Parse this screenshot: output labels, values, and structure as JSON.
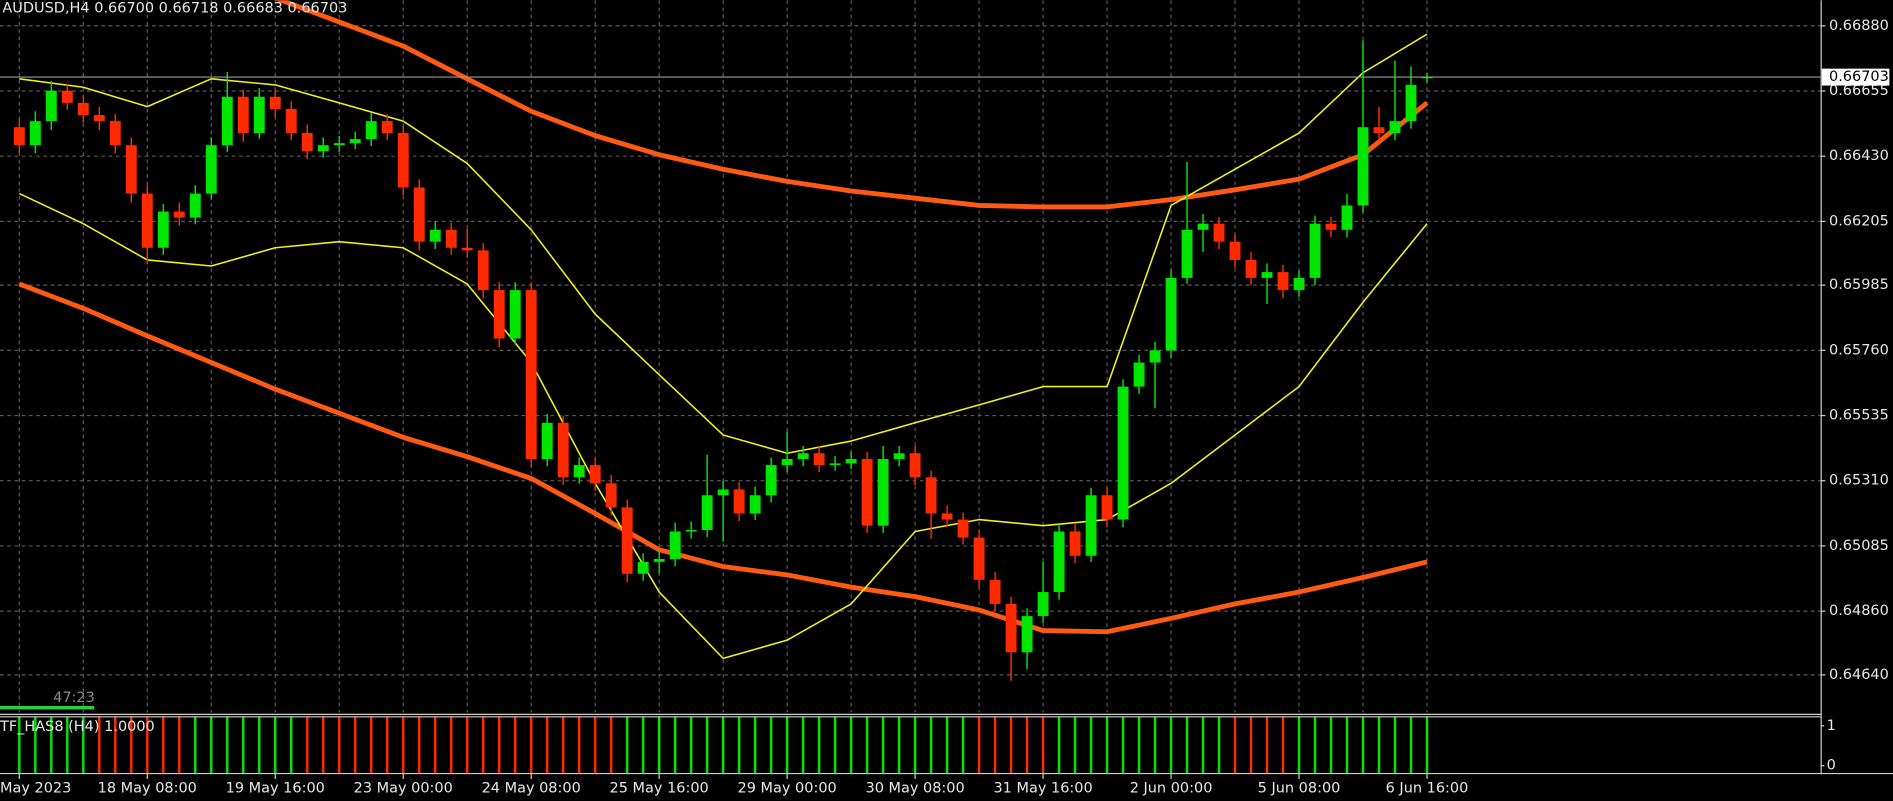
{
  "chart_data": {
    "type": "candlestick",
    "title": "AUDUSD,H4  0.66700 0.66718 0.66683 0.66703",
    "categories": [
      "May 2023",
      null,
      null,
      null,
      null,
      null,
      null,
      null,
      "18 May 08:00",
      null,
      null,
      null,
      null,
      null,
      null,
      null,
      "19 May 16:00",
      null,
      null,
      null,
      null,
      null,
      null,
      null,
      "23 May 00:00",
      null,
      null,
      null,
      null,
      null,
      null,
      null,
      "24 May 08:00",
      null,
      null,
      null,
      null,
      null,
      null,
      null,
      "25 May 16:00",
      null,
      null,
      null,
      null,
      null,
      null,
      null,
      "29 May 00:00",
      null,
      null,
      null,
      null,
      null,
      null,
      null,
      "30 May 08:00",
      null,
      null,
      null,
      null,
      null,
      null,
      null,
      "31 May 16:00",
      null,
      null,
      null,
      null,
      null,
      null,
      null,
      "2 Jun 00:00",
      null,
      null,
      null,
      null,
      null,
      null,
      null,
      "5 Jun 08:00",
      null,
      null,
      null,
      null,
      null,
      null,
      null,
      "6 Jun 16:00"
    ],
    "ohlc": [
      [
        0.6653,
        0.6656,
        0.6644,
        0.66468
      ],
      [
        0.66468,
        0.66585,
        0.6644,
        0.66551
      ],
      [
        0.66551,
        0.6669,
        0.6652,
        0.66656
      ],
      [
        0.66656,
        0.6668,
        0.6659,
        0.66614
      ],
      [
        0.66614,
        0.6664,
        0.66545,
        0.66572
      ],
      [
        0.66572,
        0.666,
        0.6652,
        0.66551
      ],
      [
        0.66551,
        0.66575,
        0.6644,
        0.66468
      ],
      [
        0.66468,
        0.66495,
        0.6627,
        0.66301
      ],
      [
        0.66301,
        0.6633,
        0.6606,
        0.66114
      ],
      [
        0.66114,
        0.66265,
        0.6609,
        0.66239
      ],
      [
        0.66239,
        0.6627,
        0.6619,
        0.66218
      ],
      [
        0.66218,
        0.6633,
        0.66195,
        0.66301
      ],
      [
        0.66301,
        0.66495,
        0.6628,
        0.66468
      ],
      [
        0.66468,
        0.6672,
        0.66445,
        0.66635
      ],
      [
        0.66635,
        0.6666,
        0.6648,
        0.6651
      ],
      [
        0.6651,
        0.66665,
        0.6649,
        0.66635
      ],
      [
        0.66635,
        0.6666,
        0.66565,
        0.66593
      ],
      [
        0.66593,
        0.6662,
        0.66485,
        0.6651
      ],
      [
        0.6651,
        0.6654,
        0.6642,
        0.66447
      ],
      [
        0.66447,
        0.66495,
        0.66425,
        0.66468
      ],
      [
        0.66468,
        0.665,
        0.66445,
        0.66475
      ],
      [
        0.66475,
        0.66515,
        0.66455,
        0.66489
      ],
      [
        0.66489,
        0.6658,
        0.66465,
        0.66551
      ],
      [
        0.66551,
        0.66575,
        0.66485,
        0.6651
      ],
      [
        0.6651,
        0.66535,
        0.66295,
        0.66322
      ],
      [
        0.66322,
        0.6635,
        0.66105,
        0.66135
      ],
      [
        0.66135,
        0.66205,
        0.6611,
        0.66176
      ],
      [
        0.66176,
        0.662,
        0.6609,
        0.66114
      ],
      [
        0.66114,
        0.6618,
        0.6608,
        0.66105
      ],
      [
        0.66105,
        0.6613,
        0.6594,
        0.65968
      ],
      [
        0.65968,
        0.65995,
        0.6577,
        0.65801
      ],
      [
        0.65801,
        0.65995,
        0.6578,
        0.65968
      ],
      [
        0.65968,
        0.65995,
        0.65355,
        0.65385
      ],
      [
        0.65385,
        0.6554,
        0.6536,
        0.6551
      ],
      [
        0.6551,
        0.65535,
        0.65295,
        0.65322
      ],
      [
        0.65322,
        0.6539,
        0.653,
        0.65364
      ],
      [
        0.65364,
        0.6539,
        0.65275,
        0.65301
      ],
      [
        0.65301,
        0.6533,
        0.6519,
        0.65218
      ],
      [
        0.65218,
        0.65245,
        0.6496,
        0.64989
      ],
      [
        0.64989,
        0.6506,
        0.64965,
        0.6503
      ],
      [
        0.6503,
        0.6507,
        0.6499,
        0.6504
      ],
      [
        0.6504,
        0.65165,
        0.65015,
        0.65135
      ],
      [
        0.65135,
        0.6517,
        0.6511,
        0.6514
      ],
      [
        0.6514,
        0.654,
        0.65115,
        0.6526
      ],
      [
        0.6526,
        0.6531,
        0.651,
        0.6528
      ],
      [
        0.6528,
        0.65305,
        0.6517,
        0.65197
      ],
      [
        0.65197,
        0.6529,
        0.65175,
        0.6526
      ],
      [
        0.6526,
        0.6539,
        0.65235,
        0.65364
      ],
      [
        0.65364,
        0.6548,
        0.6534,
        0.65385
      ],
      [
        0.65385,
        0.6543,
        0.6536,
        0.65405
      ],
      [
        0.65405,
        0.6543,
        0.6534,
        0.65364
      ],
      [
        0.65364,
        0.65395,
        0.65345,
        0.6537
      ],
      [
        0.6537,
        0.6541,
        0.6535,
        0.65385
      ],
      [
        0.65385,
        0.6541,
        0.6513,
        0.65155
      ],
      [
        0.65155,
        0.6543,
        0.6513,
        0.65385
      ],
      [
        0.65385,
        0.6543,
        0.6536,
        0.65405
      ],
      [
        0.65405,
        0.6543,
        0.65295,
        0.65322
      ],
      [
        0.65322,
        0.65345,
        0.6511,
        0.65197
      ],
      [
        0.65197,
        0.65225,
        0.6515,
        0.65176
      ],
      [
        0.65176,
        0.652,
        0.6509,
        0.65114
      ],
      [
        0.65114,
        0.6514,
        0.6494,
        0.64968
      ],
      [
        0.64968,
        0.64995,
        0.6486,
        0.64885
      ],
      [
        0.64885,
        0.6491,
        0.6462,
        0.64718
      ],
      [
        0.64718,
        0.6487,
        0.6466,
        0.64843
      ],
      [
        0.64843,
        0.6503,
        0.6482,
        0.64926
      ],
      [
        0.64926,
        0.6516,
        0.649,
        0.65135
      ],
      [
        0.65135,
        0.6516,
        0.65025,
        0.65051
      ],
      [
        0.65051,
        0.65285,
        0.6503,
        0.6526
      ],
      [
        0.6526,
        0.65285,
        0.6515,
        0.65176
      ],
      [
        0.65176,
        0.6566,
        0.6515,
        0.65635
      ],
      [
        0.65635,
        0.65745,
        0.6561,
        0.65718
      ],
      [
        0.65718,
        0.6579,
        0.6556,
        0.6576
      ],
      [
        0.6576,
        0.6604,
        0.65735,
        0.6601
      ],
      [
        0.6601,
        0.6641,
        0.6599,
        0.66176
      ],
      [
        0.66176,
        0.6623,
        0.661,
        0.66197
      ],
      [
        0.66197,
        0.6622,
        0.6611,
        0.66135
      ],
      [
        0.66135,
        0.6616,
        0.66045,
        0.66072
      ],
      [
        0.66072,
        0.661,
        0.65985,
        0.6601
      ],
      [
        0.6601,
        0.6606,
        0.6592,
        0.6603
      ],
      [
        0.6603,
        0.66055,
        0.6594,
        0.65968
      ],
      [
        0.65968,
        0.66035,
        0.65945,
        0.6601
      ],
      [
        0.6601,
        0.66225,
        0.65985,
        0.66197
      ],
      [
        0.66197,
        0.6622,
        0.6615,
        0.66176
      ],
      [
        0.66176,
        0.663,
        0.6615,
        0.6626
      ],
      [
        0.6626,
        0.6683,
        0.66235,
        0.6653
      ],
      [
        0.6653,
        0.666,
        0.66485,
        0.6651
      ],
      [
        0.6651,
        0.6676,
        0.66485,
        0.66551
      ],
      [
        0.66551,
        0.6674,
        0.66525,
        0.66676
      ],
      [
        0.667,
        0.66718,
        0.66683,
        0.66703
      ]
    ],
    "up_color": "#00e600",
    "down_color": "#ff2a00",
    "ylim": [
      0.6451,
      0.66968
    ],
    "yticks": [
      {
        "value": 0.6688,
        "label": "0.66880"
      },
      {
        "value": 0.66655,
        "label": "0.66655"
      },
      {
        "value": 0.6643,
        "label": "0.66430"
      },
      {
        "value": 0.66205,
        "label": "0.66205"
      },
      {
        "value": 0.65985,
        "label": "0.65985"
      },
      {
        "value": 0.6576,
        "label": "0.65760"
      },
      {
        "value": 0.65535,
        "label": "0.65535"
      },
      {
        "value": 0.6531,
        "label": "0.65310"
      },
      {
        "value": 0.65085,
        "label": "0.65085"
      },
      {
        "value": 0.6486,
        "label": "0.64860"
      },
      {
        "value": 0.6464,
        "label": "0.64640"
      }
    ],
    "grid": true,
    "current_price": 0.66703,
    "overlays": [
      {
        "color": "#ff5a14",
        "line_style": "thick",
        "x": [
          16,
          20,
          24,
          28,
          32,
          36,
          40,
          44,
          48,
          52,
          56,
          60,
          64,
          68,
          72,
          76,
          80,
          84,
          88
        ],
        "values": [
          0.66976,
          0.66893,
          0.6681,
          0.66697,
          0.66585,
          0.66501,
          0.66435,
          0.66385,
          0.66343,
          0.6631,
          0.66285,
          0.6626,
          0.66255,
          0.66255,
          0.6628,
          0.66314,
          0.66351,
          0.66435,
          0.66614
        ]
      },
      {
        "color": "#ff5a14",
        "line_style": "thick",
        "x": [
          0,
          4,
          8,
          12,
          16,
          20,
          24,
          28,
          32,
          36,
          40,
          44,
          48,
          52,
          56,
          60,
          64,
          68,
          72,
          76,
          80,
          84,
          88
        ],
        "values": [
          0.65989,
          0.65905,
          0.6581,
          0.65718,
          0.65626,
          0.65543,
          0.6546,
          0.65393,
          0.65318,
          0.65197,
          0.65072,
          0.65014,
          0.64985,
          0.64943,
          0.6491,
          0.64864,
          0.64793,
          0.64789,
          0.64835,
          0.64885,
          0.64926,
          0.64976,
          0.6503
        ]
      },
      {
        "color": "#f0f020",
        "line_style": "thin",
        "x": [
          0,
          4,
          8,
          12,
          16,
          20,
          24,
          28,
          32,
          36,
          40,
          44,
          48,
          52,
          56,
          60,
          64,
          68,
          72,
          76,
          80,
          84,
          88
        ],
        "values": [
          0.66697,
          0.66668,
          0.66601,
          0.66697,
          0.66676,
          0.66614,
          0.66551,
          0.66405,
          0.66176,
          0.65885,
          0.65676,
          0.65468,
          0.65405,
          0.65447,
          0.6551,
          0.65572,
          0.65635,
          0.65635,
          0.6626,
          0.66385,
          0.6651,
          0.66718,
          0.66851
        ]
      },
      {
        "color": "#f0f020",
        "line_style": "thin",
        "x": [
          0,
          4,
          8,
          12,
          16,
          20,
          24,
          28,
          32,
          36,
          40,
          44,
          48,
          52,
          56,
          60,
          64,
          68,
          72,
          76,
          80,
          84,
          88
        ],
        "values": [
          0.66301,
          0.66197,
          0.66072,
          0.66051,
          0.66114,
          0.66135,
          0.66114,
          0.65989,
          0.65718,
          0.65301,
          0.64926,
          0.64697,
          0.6476,
          0.64885,
          0.65135,
          0.65176,
          0.65155,
          0.65176,
          0.65301,
          0.65468,
          0.65635,
          0.65926,
          0.66197
        ]
      }
    ],
    "timer": "47:23",
    "indicator": {
      "label": "TF_HAS8 (H4) 1.0000",
      "ylim": [
        0,
        1
      ],
      "yticks": [
        1,
        0
      ],
      "values": [
        1,
        1,
        1,
        1,
        1,
        1,
        1,
        1,
        1,
        1,
        1,
        1,
        1,
        1,
        1,
        1,
        1,
        1,
        1,
        1,
        1,
        1,
        1,
        1,
        1,
        1,
        1,
        1,
        1,
        1,
        1,
        1,
        1,
        1,
        1,
        1,
        1,
        1,
        1,
        1,
        1,
        1,
        1,
        1,
        1,
        1,
        1,
        1,
        1,
        1,
        1,
        1,
        1,
        1,
        1,
        1,
        1,
        1,
        1,
        1,
        1,
        1,
        1,
        1,
        1,
        1,
        1,
        1,
        1,
        1,
        1,
        1,
        1,
        1,
        1,
        1,
        1,
        1,
        1,
        1,
        1,
        1,
        1,
        1,
        1,
        1,
        1,
        1,
        1
      ],
      "bull": [
        1,
        1,
        1,
        1,
        1,
        0,
        0,
        0,
        0,
        0,
        0,
        1,
        1,
        1,
        1,
        1,
        1,
        1,
        0,
        0,
        0,
        0,
        0,
        0,
        0,
        0,
        0,
        0,
        0,
        0,
        0,
        0,
        0,
        0,
        0,
        0,
        0,
        0,
        1,
        1,
        1,
        1,
        1,
        1,
        1,
        1,
        1,
        1,
        1,
        1,
        1,
        1,
        1,
        1,
        1,
        1,
        1,
        1,
        1,
        1,
        0,
        0,
        0,
        0,
        0,
        1,
        1,
        1,
        1,
        1,
        1,
        1,
        1,
        1,
        1,
        1,
        0,
        0,
        0,
        0,
        1,
        1,
        1,
        1,
        1,
        1,
        1,
        1,
        1
      ]
    }
  }
}
